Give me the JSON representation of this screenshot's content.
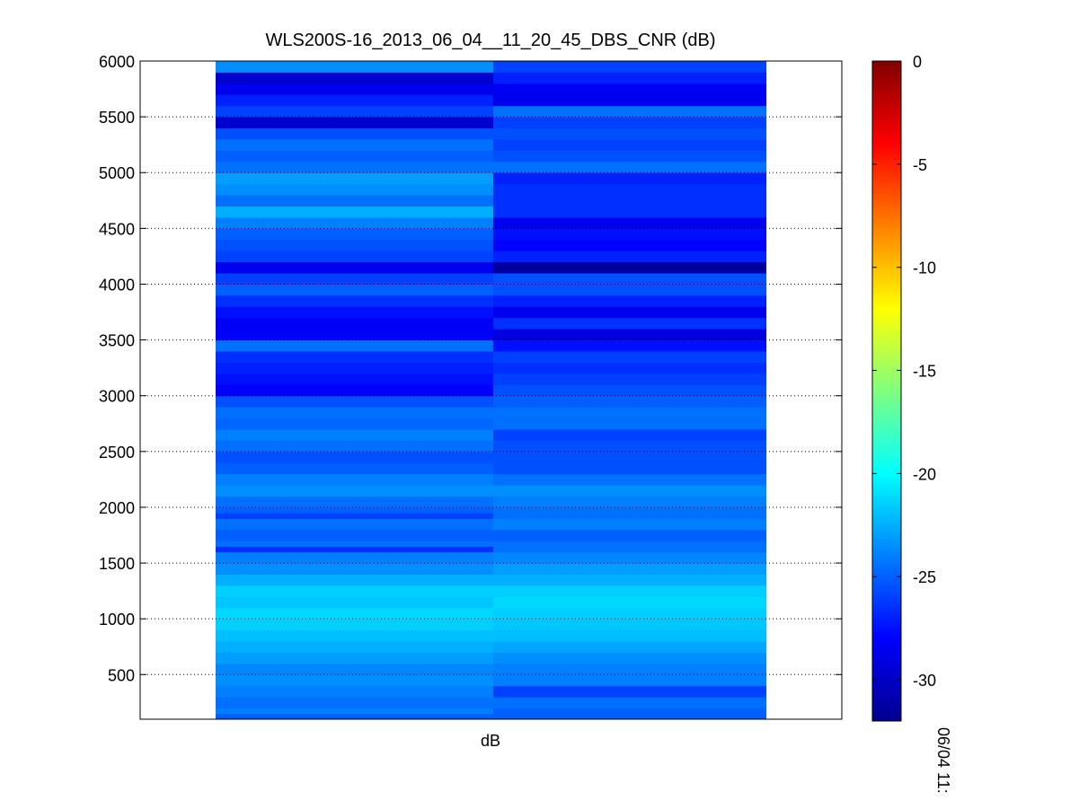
{
  "chart_data": {
    "type": "heatmap",
    "title": "WLS200S-16_2013_06_04__11_20_45_DBS_CNR (dB)",
    "xlabel": "dB",
    "ylabel": "",
    "ylim": [
      100,
      6000
    ],
    "y_ticks": [
      500,
      1000,
      1500,
      2000,
      2500,
      3000,
      3500,
      4000,
      4500,
      5000,
      5500,
      6000
    ],
    "grid": "dotted horizontal gridlines",
    "colormap": "jet",
    "colorbar": {
      "range": [
        -32,
        0
      ],
      "ticks": [
        0,
        -5,
        -10,
        -15,
        -20,
        -25,
        -30
      ],
      "time_label": "06/04 11:"
    },
    "columns": [
      {
        "bands": [
          [
            100,
            150,
            -25.0
          ],
          [
            150,
            200,
            -24.0
          ],
          [
            200,
            300,
            -24.5
          ],
          [
            300,
            400,
            -24.0
          ],
          [
            400,
            500,
            -23.5
          ],
          [
            500,
            600,
            -23.8
          ],
          [
            600,
            700,
            -23.0
          ],
          [
            700,
            800,
            -22.5
          ],
          [
            800,
            900,
            -22.0
          ],
          [
            900,
            1000,
            -21.5
          ],
          [
            1000,
            1100,
            -21.2
          ],
          [
            1100,
            1200,
            -21.8
          ],
          [
            1200,
            1300,
            -21.5
          ],
          [
            1300,
            1400,
            -22.5
          ],
          [
            1400,
            1500,
            -23.5
          ],
          [
            1500,
            1600,
            -24.0
          ],
          [
            1600,
            1650,
            -26.5
          ],
          [
            1650,
            1700,
            -24.5
          ],
          [
            1700,
            1800,
            -25.0
          ],
          [
            1800,
            1900,
            -24.5
          ],
          [
            1900,
            1950,
            -26.0
          ],
          [
            1950,
            2000,
            -25.0
          ],
          [
            2000,
            2100,
            -24.5
          ],
          [
            2100,
            2200,
            -23.5
          ],
          [
            2200,
            2300,
            -24.0
          ],
          [
            2300,
            2400,
            -25.0
          ],
          [
            2400,
            2500,
            -25.5
          ],
          [
            2500,
            2600,
            -24.5
          ],
          [
            2600,
            2700,
            -24.0
          ],
          [
            2700,
            2800,
            -24.8
          ],
          [
            2800,
            2900,
            -24.5
          ],
          [
            2900,
            3000,
            -25.5
          ],
          [
            3000,
            3100,
            -28.0
          ],
          [
            3100,
            3200,
            -27.5
          ],
          [
            3200,
            3300,
            -27.0
          ],
          [
            3300,
            3400,
            -26.5
          ],
          [
            3400,
            3500,
            -24.5
          ],
          [
            3500,
            3600,
            -28.0
          ],
          [
            3600,
            3700,
            -28.3
          ],
          [
            3700,
            3800,
            -27.5
          ],
          [
            3800,
            3900,
            -26.5
          ],
          [
            3900,
            4000,
            -25.0
          ],
          [
            4000,
            4100,
            -26.0
          ],
          [
            4100,
            4200,
            -28.5
          ],
          [
            4200,
            4300,
            -26.0
          ],
          [
            4300,
            4400,
            -25.5
          ],
          [
            4400,
            4500,
            -25.0
          ],
          [
            4500,
            4600,
            -24.0
          ],
          [
            4600,
            4700,
            -22.5
          ],
          [
            4700,
            4800,
            -24.5
          ],
          [
            4800,
            4900,
            -23.5
          ],
          [
            4900,
            5000,
            -23.0
          ],
          [
            5000,
            5100,
            -24.5
          ],
          [
            5100,
            5200,
            -25.0
          ],
          [
            5200,
            5300,
            -24.5
          ],
          [
            5300,
            5400,
            -25.5
          ],
          [
            5400,
            5500,
            -29.5
          ],
          [
            5500,
            5600,
            -26.0
          ],
          [
            5600,
            5700,
            -27.0
          ],
          [
            5700,
            5800,
            -28.5
          ],
          [
            5800,
            5900,
            -29.5
          ],
          [
            5900,
            6000,
            -23.5
          ]
        ]
      },
      {
        "bands": [
          [
            100,
            200,
            -25.0
          ],
          [
            200,
            300,
            -24.5
          ],
          [
            300,
            400,
            -26.0
          ],
          [
            400,
            500,
            -24.0
          ],
          [
            500,
            600,
            -24.0
          ],
          [
            600,
            700,
            -23.5
          ],
          [
            700,
            800,
            -22.8
          ],
          [
            800,
            900,
            -22.0
          ],
          [
            900,
            1000,
            -21.8
          ],
          [
            1000,
            1100,
            -21.5
          ],
          [
            1100,
            1200,
            -21.2
          ],
          [
            1200,
            1300,
            -21.5
          ],
          [
            1300,
            1400,
            -22.5
          ],
          [
            1400,
            1500,
            -23.0
          ],
          [
            1500,
            1600,
            -23.8
          ],
          [
            1600,
            1700,
            -24.5
          ],
          [
            1700,
            1800,
            -25.0
          ],
          [
            1800,
            1900,
            -24.0
          ],
          [
            1900,
            2000,
            -24.5
          ],
          [
            2000,
            2100,
            -24.0
          ],
          [
            2100,
            2200,
            -23.5
          ],
          [
            2200,
            2300,
            -24.5
          ],
          [
            2300,
            2400,
            -25.5
          ],
          [
            2400,
            2500,
            -25.5
          ],
          [
            2500,
            2600,
            -25.5
          ],
          [
            2600,
            2700,
            -26.0
          ],
          [
            2700,
            2800,
            -24.5
          ],
          [
            2800,
            2900,
            -24.5
          ],
          [
            2900,
            3000,
            -25.0
          ],
          [
            3000,
            3100,
            -25.5
          ],
          [
            3100,
            3200,
            -26.0
          ],
          [
            3200,
            3300,
            -26.5
          ],
          [
            3300,
            3400,
            -26.0
          ],
          [
            3400,
            3500,
            -27.5
          ],
          [
            3500,
            3600,
            -29.0
          ],
          [
            3600,
            3700,
            -26.5
          ],
          [
            3700,
            3800,
            -28.5
          ],
          [
            3800,
            3900,
            -27.0
          ],
          [
            3900,
            4000,
            -25.5
          ],
          [
            4000,
            4100,
            -25.5
          ],
          [
            4100,
            4200,
            -31.0
          ],
          [
            4200,
            4300,
            -27.0
          ],
          [
            4300,
            4400,
            -28.0
          ],
          [
            4400,
            4500,
            -27.5
          ],
          [
            4500,
            4600,
            -28.5
          ],
          [
            4600,
            4700,
            -26.5
          ],
          [
            4700,
            4800,
            -26.5
          ],
          [
            4800,
            4900,
            -26.5
          ],
          [
            4900,
            5000,
            -27.0
          ],
          [
            5000,
            5100,
            -24.5
          ],
          [
            5100,
            5200,
            -25.5
          ],
          [
            5200,
            5300,
            -26.0
          ],
          [
            5300,
            5400,
            -25.5
          ],
          [
            5400,
            5500,
            -26.0
          ],
          [
            5500,
            5600,
            -24.5
          ],
          [
            5600,
            5700,
            -28.5
          ],
          [
            5700,
            5800,
            -28.3
          ],
          [
            5800,
            5900,
            -27.0
          ],
          [
            5900,
            6000,
            -26.0
          ]
        ]
      }
    ]
  }
}
